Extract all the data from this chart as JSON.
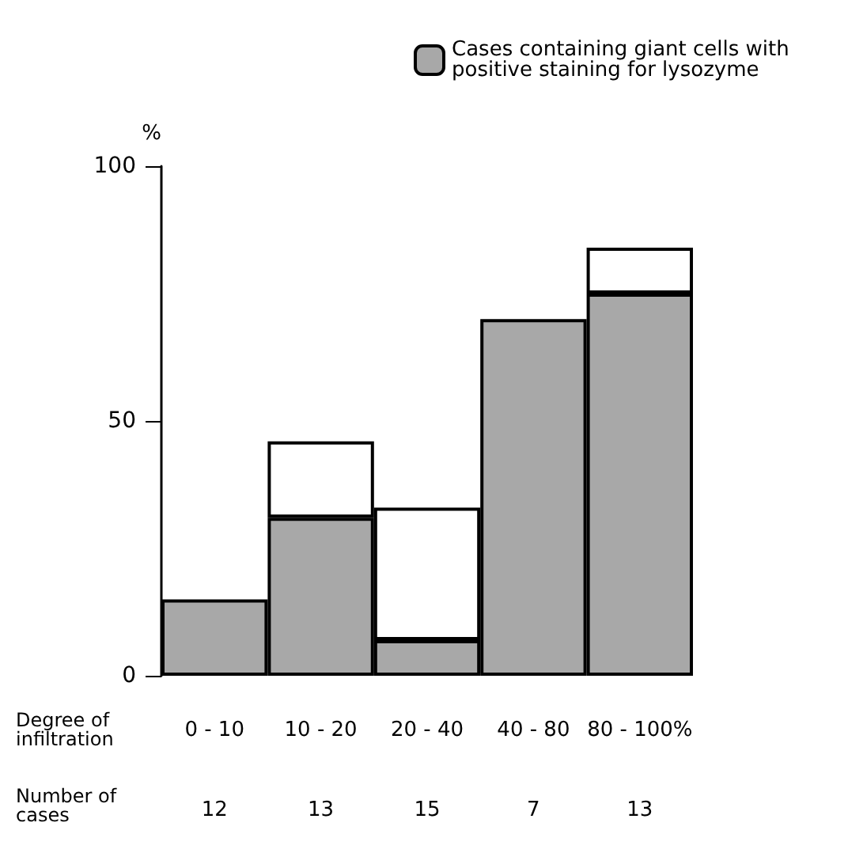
{
  "chart_data": {
    "type": "bar",
    "stacked": true,
    "xlabel": "Degree of infiltration",
    "ylabel": "%",
    "categories": [
      "0 - 10",
      "10 - 20",
      "20 - 40",
      "40 - 80",
      "80 - 100%"
    ],
    "series": [
      {
        "name": "Cases containing giant cells with positive staining for lysozyme",
        "color": "#a8a8a8",
        "values": [
          15,
          31,
          7,
          70,
          75
        ]
      },
      {
        "color": "#ffffff",
        "values": [
          null,
          15,
          26,
          null,
          9
        ]
      }
    ],
    "ylim": [
      0,
      100
    ],
    "yticks": [
      0,
      50,
      100
    ],
    "grid": false,
    "legend": "top right",
    "annotations": [
      "Number of cases",
      "12",
      "13",
      "15",
      "7",
      "13"
    ]
  }
}
